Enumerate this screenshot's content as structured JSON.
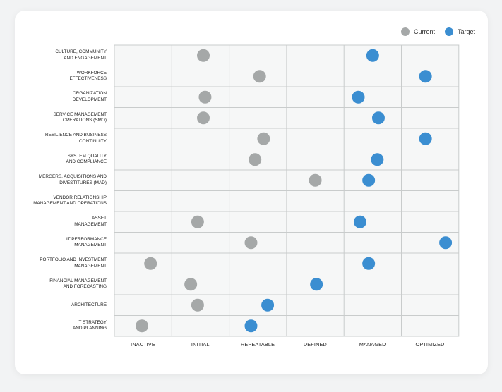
{
  "legend": {
    "current_label": "Current",
    "target_label": "Target"
  },
  "colors": {
    "current": "#a5a8a8",
    "target": "#3b8ed1",
    "grid_bg": "#f6f7f7",
    "grid_line": "#c9cccc"
  },
  "chart_data": {
    "type": "scatter",
    "title": "",
    "xlabel": "",
    "ylabel": "",
    "legend_position": "top-right",
    "grid": true,
    "x_scale": [
      "INACTIVE",
      "INITIAL",
      "REPEATABLE",
      "DEFINED",
      "MANAGED",
      "OPTIMIZED"
    ],
    "categories": [
      "CULTURE, COMMUNITY\nAND ENGAGEMENT",
      "WORKFORCE\nEFFECTIVENESS",
      "ORGANIZATION\nDEVELOPMENT",
      "SERVICE MANAGEMENT\nOPERATIONS (SMO)",
      "RESILIENCE AND BUSINESS\nCONTINUITY",
      "SYSTEM QUALITY\nAND COMPLIANCE",
      "MERGERS, ACQUISITIONS AND\nDIVESTITURES (MAD)",
      "VENDOR RELATIONSHIP\nMANAGEMENT AND OPERATIONS",
      "ASSET\nMANAGEMENT",
      "IT PERFORMANCE\nMANAGEMENT",
      "PORTFOLIO AND INVESTMENT\nMANAGEMENT",
      "FINANCIAL MANAGEMENT\nAND FORECASTING",
      "ARCHITECTURE",
      "IT STRATEGY\nAND PLANNING"
    ],
    "series": [
      {
        "name": "Current",
        "values": [
          1.55,
          2.53,
          1.58,
          1.55,
          2.6,
          2.45,
          3.5,
          null,
          1.45,
          2.38,
          0.63,
          1.33,
          1.45,
          0.48
        ]
      },
      {
        "name": "Target",
        "values": [
          4.5,
          5.42,
          4.25,
          4.6,
          5.42,
          4.58,
          4.43,
          null,
          4.28,
          5.77,
          4.43,
          3.52,
          2.67,
          2.38
        ]
      }
    ]
  }
}
